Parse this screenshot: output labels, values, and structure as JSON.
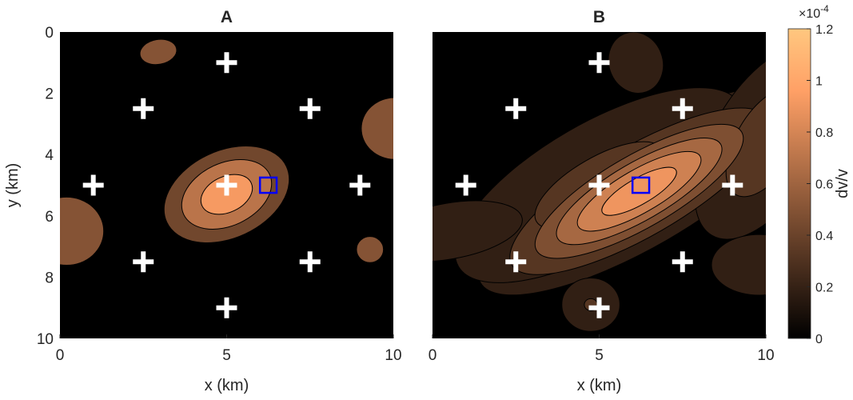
{
  "chart_data": {
    "type": "heatmap",
    "colorbar": {
      "label": "dv/v",
      "exponent": "×10",
      "exponent_power": "-4",
      "range": [
        0,
        1.2
      ],
      "ticks": [
        0,
        0.2,
        0.4,
        0.6,
        0.8,
        1,
        1.2
      ],
      "tick_labels": [
        "0",
        "0.2",
        "0.4",
        "0.6",
        "0.8",
        "1",
        "1.2"
      ],
      "colormap": "copper"
    },
    "panels": [
      {
        "title": "A",
        "xlabel": "x (km)",
        "ylabel": "y (km)",
        "xlim": [
          0,
          10
        ],
        "ylim": [
          0,
          10
        ],
        "xticks": [
          0,
          5,
          10
        ],
        "xtick_labels": [
          "0",
          "5",
          "10"
        ],
        "yticks": [
          0,
          2,
          4,
          6,
          8,
          10
        ],
        "ytick_labels": [
          "0",
          "2",
          "4",
          "6",
          "8",
          "10"
        ],
        "stations": [
          [
            5,
            1
          ],
          [
            2.5,
            2.5
          ],
          [
            7.5,
            2.5
          ],
          [
            1,
            5
          ],
          [
            5,
            5
          ],
          [
            9,
            5
          ],
          [
            2.5,
            7.5
          ],
          [
            7.5,
            7.5
          ],
          [
            5,
            9
          ]
        ],
        "target_box": {
          "x": 6.25,
          "y": 5.0,
          "size": 0.5
        },
        "anomalies": [
          {
            "x": 5.0,
            "y": 5.3,
            "sx": 1.25,
            "sy": 0.9,
            "rot": -25,
            "peak": 1.05
          },
          {
            "x": 1.0,
            "y": 4.8,
            "sx": 1.5,
            "sy": 0.8,
            "rot": -20,
            "peak": 0.1
          },
          {
            "x": 0.3,
            "y": 3.0,
            "sx": 0.8,
            "sy": 0.8,
            "rot": 0,
            "peak": 0.08
          }
        ],
        "patches": [
          {
            "x": 2.95,
            "y": 0.65,
            "sx": 0.55,
            "sy": 0.4,
            "rot": -10,
            "peak": 0.5
          },
          {
            "x": 10.05,
            "y": 3.15,
            "sx": 1.0,
            "sy": 1.0,
            "rot": 0,
            "peak": 0.5
          },
          {
            "x": 0.2,
            "y": 6.5,
            "sx": 1.1,
            "sy": 1.1,
            "rot": 0,
            "peak": 0.5
          },
          {
            "x": 9.3,
            "y": 7.1,
            "sx": 0.4,
            "sy": 0.42,
            "rot": 0,
            "peak": 0.5
          }
        ],
        "contour_levels": [
          0.3,
          0.55,
          0.85
        ]
      },
      {
        "title": "B",
        "xlabel": "x (km)",
        "ylabel": "",
        "xlim": [
          0,
          10
        ],
        "ylim": [
          0,
          10
        ],
        "xticks": [
          0,
          5,
          10
        ],
        "xtick_labels": [
          "0",
          "5",
          "10"
        ],
        "yticks": [],
        "ytick_labels": [],
        "stations": [
          [
            5,
            1
          ],
          [
            2.5,
            2.5
          ],
          [
            7.5,
            2.5
          ],
          [
            1,
            5
          ],
          [
            5,
            5
          ],
          [
            9,
            5
          ],
          [
            2.5,
            7.5
          ],
          [
            7.5,
            7.5
          ],
          [
            5,
            9
          ]
        ],
        "target_box": {
          "x": 6.25,
          "y": 5.0,
          "size": 0.5
        },
        "anomalies": [
          {
            "x": 6.2,
            "y": 5.2,
            "sx": 2.7,
            "sy": 0.9,
            "rot": -30,
            "peak": 0.95
          },
          {
            "x": 5.0,
            "y": 5.0,
            "sx": 3.6,
            "sy": 1.5,
            "rot": -30,
            "peak": 0.3
          },
          {
            "x": 0.5,
            "y": 6.5,
            "sx": 2.2,
            "sy": 0.9,
            "rot": -10,
            "peak": 0.2
          },
          {
            "x": 10.0,
            "y": 3.6,
            "sx": 1.1,
            "sy": 2.4,
            "rot": 30,
            "peak": 0.35
          },
          {
            "x": 9.8,
            "y": 7.6,
            "sx": 1.3,
            "sy": 0.9,
            "rot": 0,
            "peak": 0.22
          },
          {
            "x": 6.1,
            "y": 1.0,
            "sx": 0.8,
            "sy": 1.0,
            "rot": -20,
            "peak": 0.2
          },
          {
            "x": 4.75,
            "y": 8.9,
            "sx": 0.7,
            "sy": 0.7,
            "rot": 0,
            "peak": 0.26
          }
        ],
        "patches": [],
        "contour_levels": [
          0.12,
          0.25,
          0.4,
          0.55,
          0.7,
          0.85
        ]
      }
    ]
  }
}
